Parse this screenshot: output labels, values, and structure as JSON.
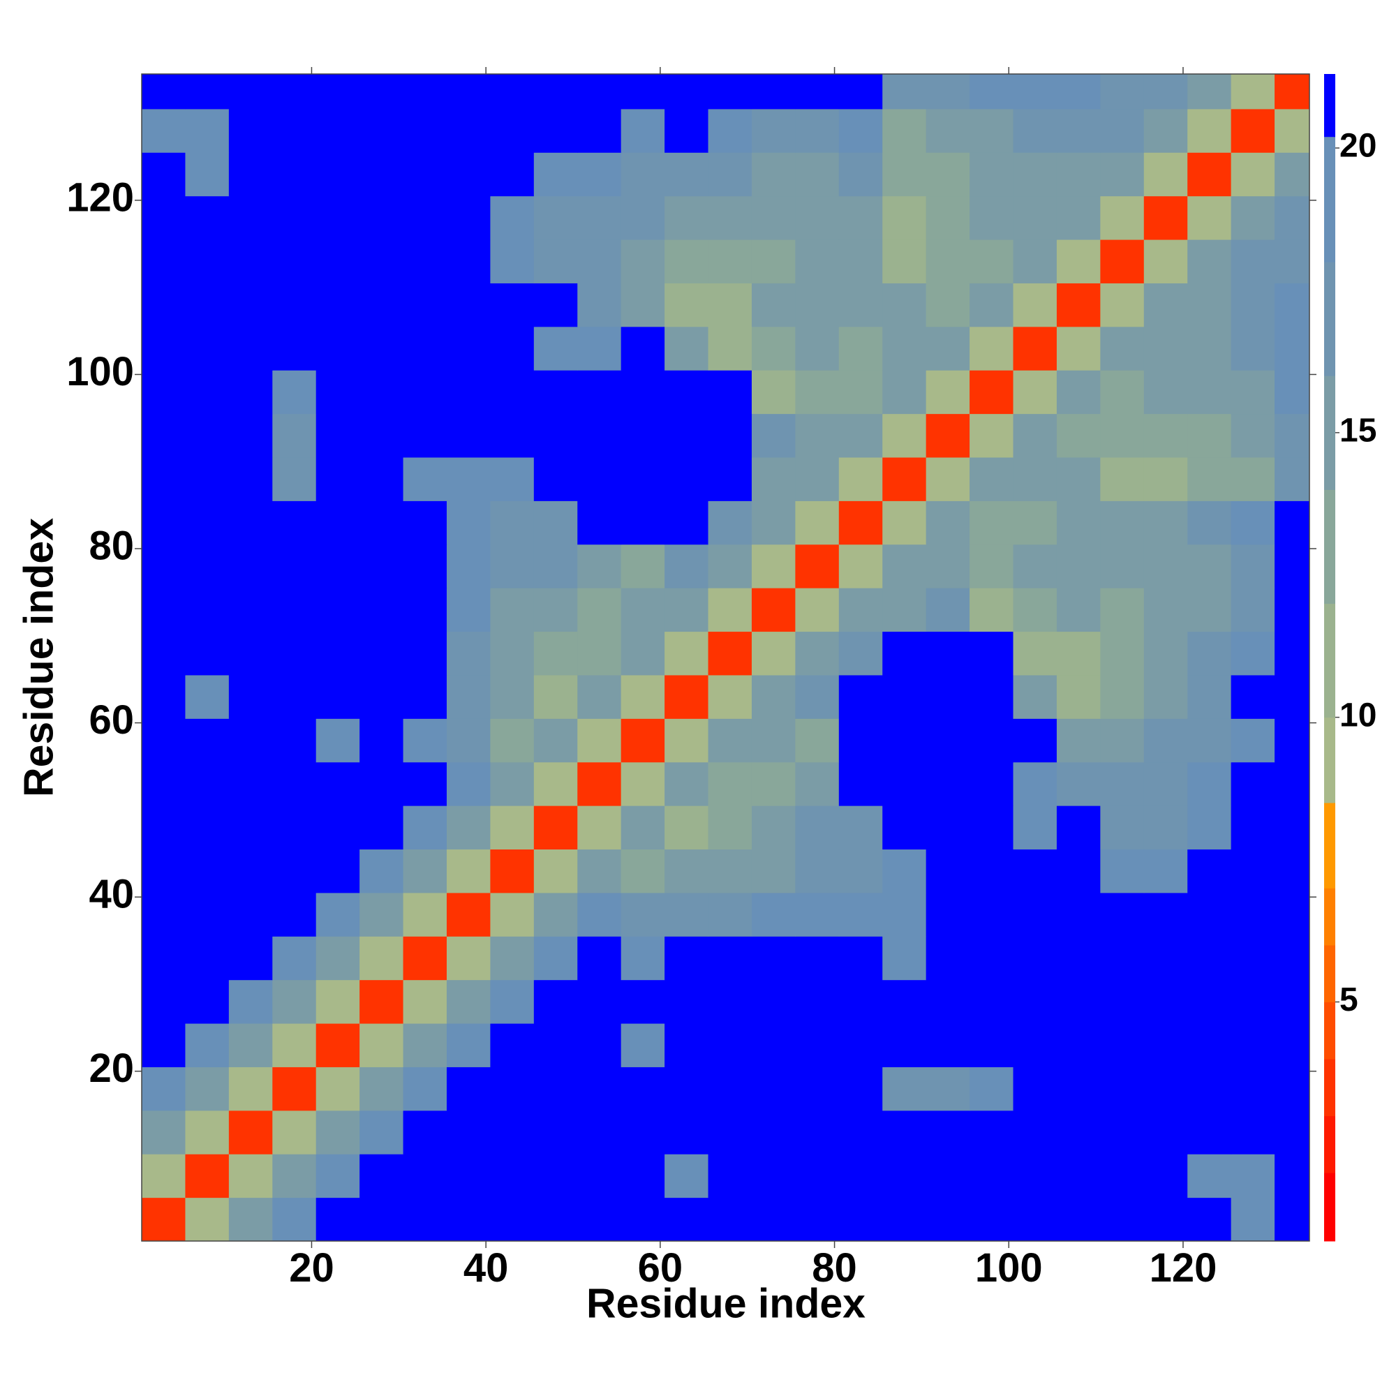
{
  "chart_data": {
    "type": "heatmap",
    "x_label": "Residue index",
    "y_label": "Residue index",
    "xlim": [
      0.5,
      134.5
    ],
    "ylim": [
      0.5,
      134.5
    ],
    "xticks": [
      20,
      40,
      60,
      80,
      100,
      120
    ],
    "yticks": [
      20,
      40,
      60,
      80,
      100,
      120
    ],
    "x_bins": [
      0.5,
      5.5,
      10.5,
      15.5,
      20.5,
      25.5,
      30.5,
      35.5,
      40.5,
      45.5,
      50.5,
      55.5,
      60.5,
      65.5,
      70.5,
      75.5,
      80.5,
      85.5,
      90.5,
      95.5,
      100.5,
      105.5,
      110.5,
      115.5,
      120.5,
      125.5,
      130.5,
      134.5
    ],
    "y_bins": [
      0.5,
      5.5,
      10.5,
      15.5,
      20.5,
      25.5,
      30.5,
      35.5,
      40.5,
      45.5,
      50.5,
      55.5,
      60.5,
      65.5,
      70.5,
      75.5,
      80.5,
      85.5,
      90.5,
      95.5,
      100.5,
      105.5,
      110.5,
      115.5,
      120.5,
      125.5,
      130.5,
      134.5
    ],
    "z": [
      [
        4,
        9,
        15,
        19.5,
        21,
        21,
        21,
        21,
        21,
        21,
        21,
        21,
        21,
        21,
        21,
        21,
        21,
        21,
        21,
        21,
        21,
        21,
        21,
        21,
        21,
        20,
        21
      ],
      [
        9,
        4,
        9,
        15,
        19.5,
        21,
        21,
        21,
        21,
        21,
        21,
        21,
        20,
        21,
        21,
        21,
        21,
        21,
        21,
        21,
        21,
        21,
        21,
        21,
        19,
        19,
        21
      ],
      [
        15,
        9,
        4,
        9,
        15,
        19.5,
        21,
        21,
        21,
        21,
        21,
        21,
        21,
        21,
        21,
        21,
        21,
        21,
        21,
        21,
        21,
        21,
        21,
        21,
        21,
        21,
        21
      ],
      [
        19.5,
        15,
        9,
        4,
        9,
        15,
        19.5,
        21,
        21,
        21,
        21,
        21,
        21,
        21,
        21,
        21,
        21,
        18,
        17,
        19,
        21,
        21,
        21,
        21,
        21,
        21,
        21
      ],
      [
        21,
        19.5,
        15,
        9,
        4,
        9,
        15,
        19.5,
        21,
        21,
        21,
        20,
        21,
        21,
        21,
        21,
        21,
        21,
        21,
        21,
        21,
        21,
        21,
        21,
        21,
        21,
        21
      ],
      [
        21,
        21,
        19.5,
        15,
        9,
        4,
        9,
        15,
        19.5,
        21,
        21,
        21,
        21,
        21,
        21,
        21,
        21,
        21,
        21,
        21,
        21,
        21,
        21,
        21,
        21,
        21,
        21
      ],
      [
        21,
        21,
        21,
        19.5,
        15,
        9,
        4,
        9,
        15,
        19.5,
        21,
        20,
        21,
        21,
        21,
        21,
        21,
        20,
        21,
        21,
        21,
        21,
        21,
        21,
        21,
        21,
        21
      ],
      [
        21,
        21,
        21,
        21,
        19.5,
        15,
        9,
        4,
        9,
        15,
        19.5,
        17,
        17,
        18,
        19,
        19,
        19,
        19,
        21,
        21,
        21,
        21,
        21,
        21,
        21,
        21,
        21
      ],
      [
        21,
        21,
        21,
        21,
        21,
        19.5,
        15,
        9,
        4,
        9,
        15,
        14,
        16,
        15,
        16,
        18,
        18,
        19,
        21,
        21,
        21,
        21,
        19,
        19,
        21,
        21,
        21
      ],
      [
        21,
        21,
        21,
        21,
        21,
        21,
        19.5,
        15,
        9,
        4,
        9,
        15,
        12,
        14,
        15,
        17,
        18,
        21,
        21,
        21,
        19,
        21,
        18,
        18,
        19,
        21,
        21
      ],
      [
        21,
        21,
        21,
        21,
        21,
        21,
        21,
        19.5,
        15,
        9,
        4,
        9,
        15,
        13,
        14,
        16,
        21,
        21,
        21,
        21,
        19,
        18,
        17,
        18,
        19,
        21,
        21
      ],
      [
        21,
        21,
        21,
        21,
        20,
        21,
        20,
        17,
        14,
        15,
        9,
        4,
        9,
        15,
        16,
        14,
        21,
        21,
        21,
        21,
        21,
        16,
        16,
        17,
        18,
        19,
        21
      ],
      [
        21,
        20,
        21,
        21,
        21,
        21,
        21,
        17,
        16,
        12,
        15,
        9,
        4,
        9,
        15,
        17,
        21,
        21,
        21,
        21,
        15,
        12,
        14,
        15,
        18,
        21,
        21
      ],
      [
        21,
        21,
        21,
        21,
        21,
        21,
        21,
        18,
        15,
        14,
        13,
        15,
        9,
        4,
        9,
        15,
        17,
        21,
        21,
        21,
        11,
        12,
        13,
        16,
        17,
        19,
        21
      ],
      [
        21,
        21,
        21,
        21,
        21,
        21,
        21,
        19,
        16,
        15,
        14,
        16,
        15,
        9,
        4,
        9,
        15,
        16,
        17,
        12,
        13,
        15,
        14,
        15,
        16,
        17,
        21
      ],
      [
        21,
        21,
        21,
        21,
        21,
        21,
        21,
        19,
        18,
        17,
        16,
        14,
        17,
        15,
        9,
        4,
        9,
        15,
        15,
        14,
        16,
        15,
        15,
        15,
        16,
        18,
        21
      ],
      [
        21,
        21,
        21,
        21,
        21,
        21,
        21,
        19,
        18,
        18,
        21,
        21,
        21,
        17,
        15,
        9,
        4,
        9,
        15,
        14,
        14,
        15,
        16,
        16,
        17,
        19,
        21
      ],
      [
        21,
        21,
        21,
        18,
        21,
        21,
        20,
        19,
        19,
        21,
        21,
        21,
        21,
        21,
        16,
        15,
        9,
        4,
        9,
        15,
        15,
        15,
        12,
        12,
        13,
        14,
        17
      ],
      [
        21,
        21,
        21,
        17,
        21,
        21,
        21,
        21,
        21,
        21,
        21,
        21,
        21,
        21,
        17,
        15,
        15,
        9,
        4,
        9,
        15,
        14,
        13,
        13,
        13,
        15,
        17
      ],
      [
        21,
        21,
        21,
        19,
        21,
        21,
        21,
        21,
        21,
        21,
        21,
        21,
        21,
        21,
        12,
        14,
        14,
        15,
        9,
        4,
        9,
        15,
        14,
        15,
        15,
        16,
        19
      ],
      [
        21,
        21,
        21,
        21,
        21,
        21,
        21,
        21,
        21,
        19,
        19,
        21,
        15,
        11,
        13,
        16,
        14,
        15,
        15,
        9,
        4,
        9,
        15,
        15,
        15,
        17,
        19
      ],
      [
        21,
        21,
        21,
        21,
        21,
        21,
        21,
        21,
        21,
        21,
        18,
        16,
        12,
        12,
        15,
        15,
        15,
        15,
        14,
        15,
        9,
        4,
        9,
        15,
        16,
        18,
        19
      ],
      [
        21,
        21,
        21,
        21,
        21,
        21,
        21,
        21,
        19,
        18,
        17,
        16,
        14,
        13,
        14,
        15,
        16,
        12,
        13,
        14,
        15,
        9,
        4,
        9,
        15,
        17,
        17
      ],
      [
        21,
        21,
        21,
        21,
        21,
        21,
        21,
        21,
        19,
        18,
        18,
        17,
        15,
        16,
        15,
        15,
        16,
        12,
        13,
        15,
        15,
        15,
        9,
        4,
        9,
        15,
        17
      ],
      [
        21,
        19,
        21,
        21,
        21,
        21,
        21,
        21,
        21,
        19,
        19,
        18,
        18,
        17,
        16,
        16,
        17,
        13,
        13,
        15,
        15,
        16,
        15,
        9,
        4,
        9,
        15
      ],
      [
        20,
        19,
        21,
        21,
        21,
        21,
        21,
        21,
        21,
        21,
        21,
        19,
        21,
        19,
        17,
        18,
        19,
        14,
        15,
        16,
        17,
        18,
        17,
        15,
        9,
        4,
        9
      ],
      [
        21,
        21,
        21,
        21,
        21,
        21,
        21,
        21,
        21,
        21,
        21,
        21,
        21,
        21,
        21,
        21,
        21,
        17,
        17,
        19,
        19,
        19,
        17,
        17,
        15,
        9,
        4
      ]
    ],
    "colorbar": {
      "lim": [
        0.8,
        21.3
      ],
      "ticks": [
        5,
        10,
        15,
        20
      ],
      "levels": [
        0.8,
        2,
        3,
        4,
        5,
        6,
        7,
        8.5,
        10,
        12,
        14,
        16,
        18,
        20.2,
        21.3
      ],
      "colors": [
        "#ff0000",
        "#ff1a00",
        "#ff3300",
        "#ff4d00",
        "#ff6600",
        "#ff8000",
        "#ff9900",
        "#a8b98a",
        "#9bb28f",
        "#89a79a",
        "#7b9ca6",
        "#6f94b0",
        "#6890b8",
        "#0000ff"
      ]
    }
  }
}
